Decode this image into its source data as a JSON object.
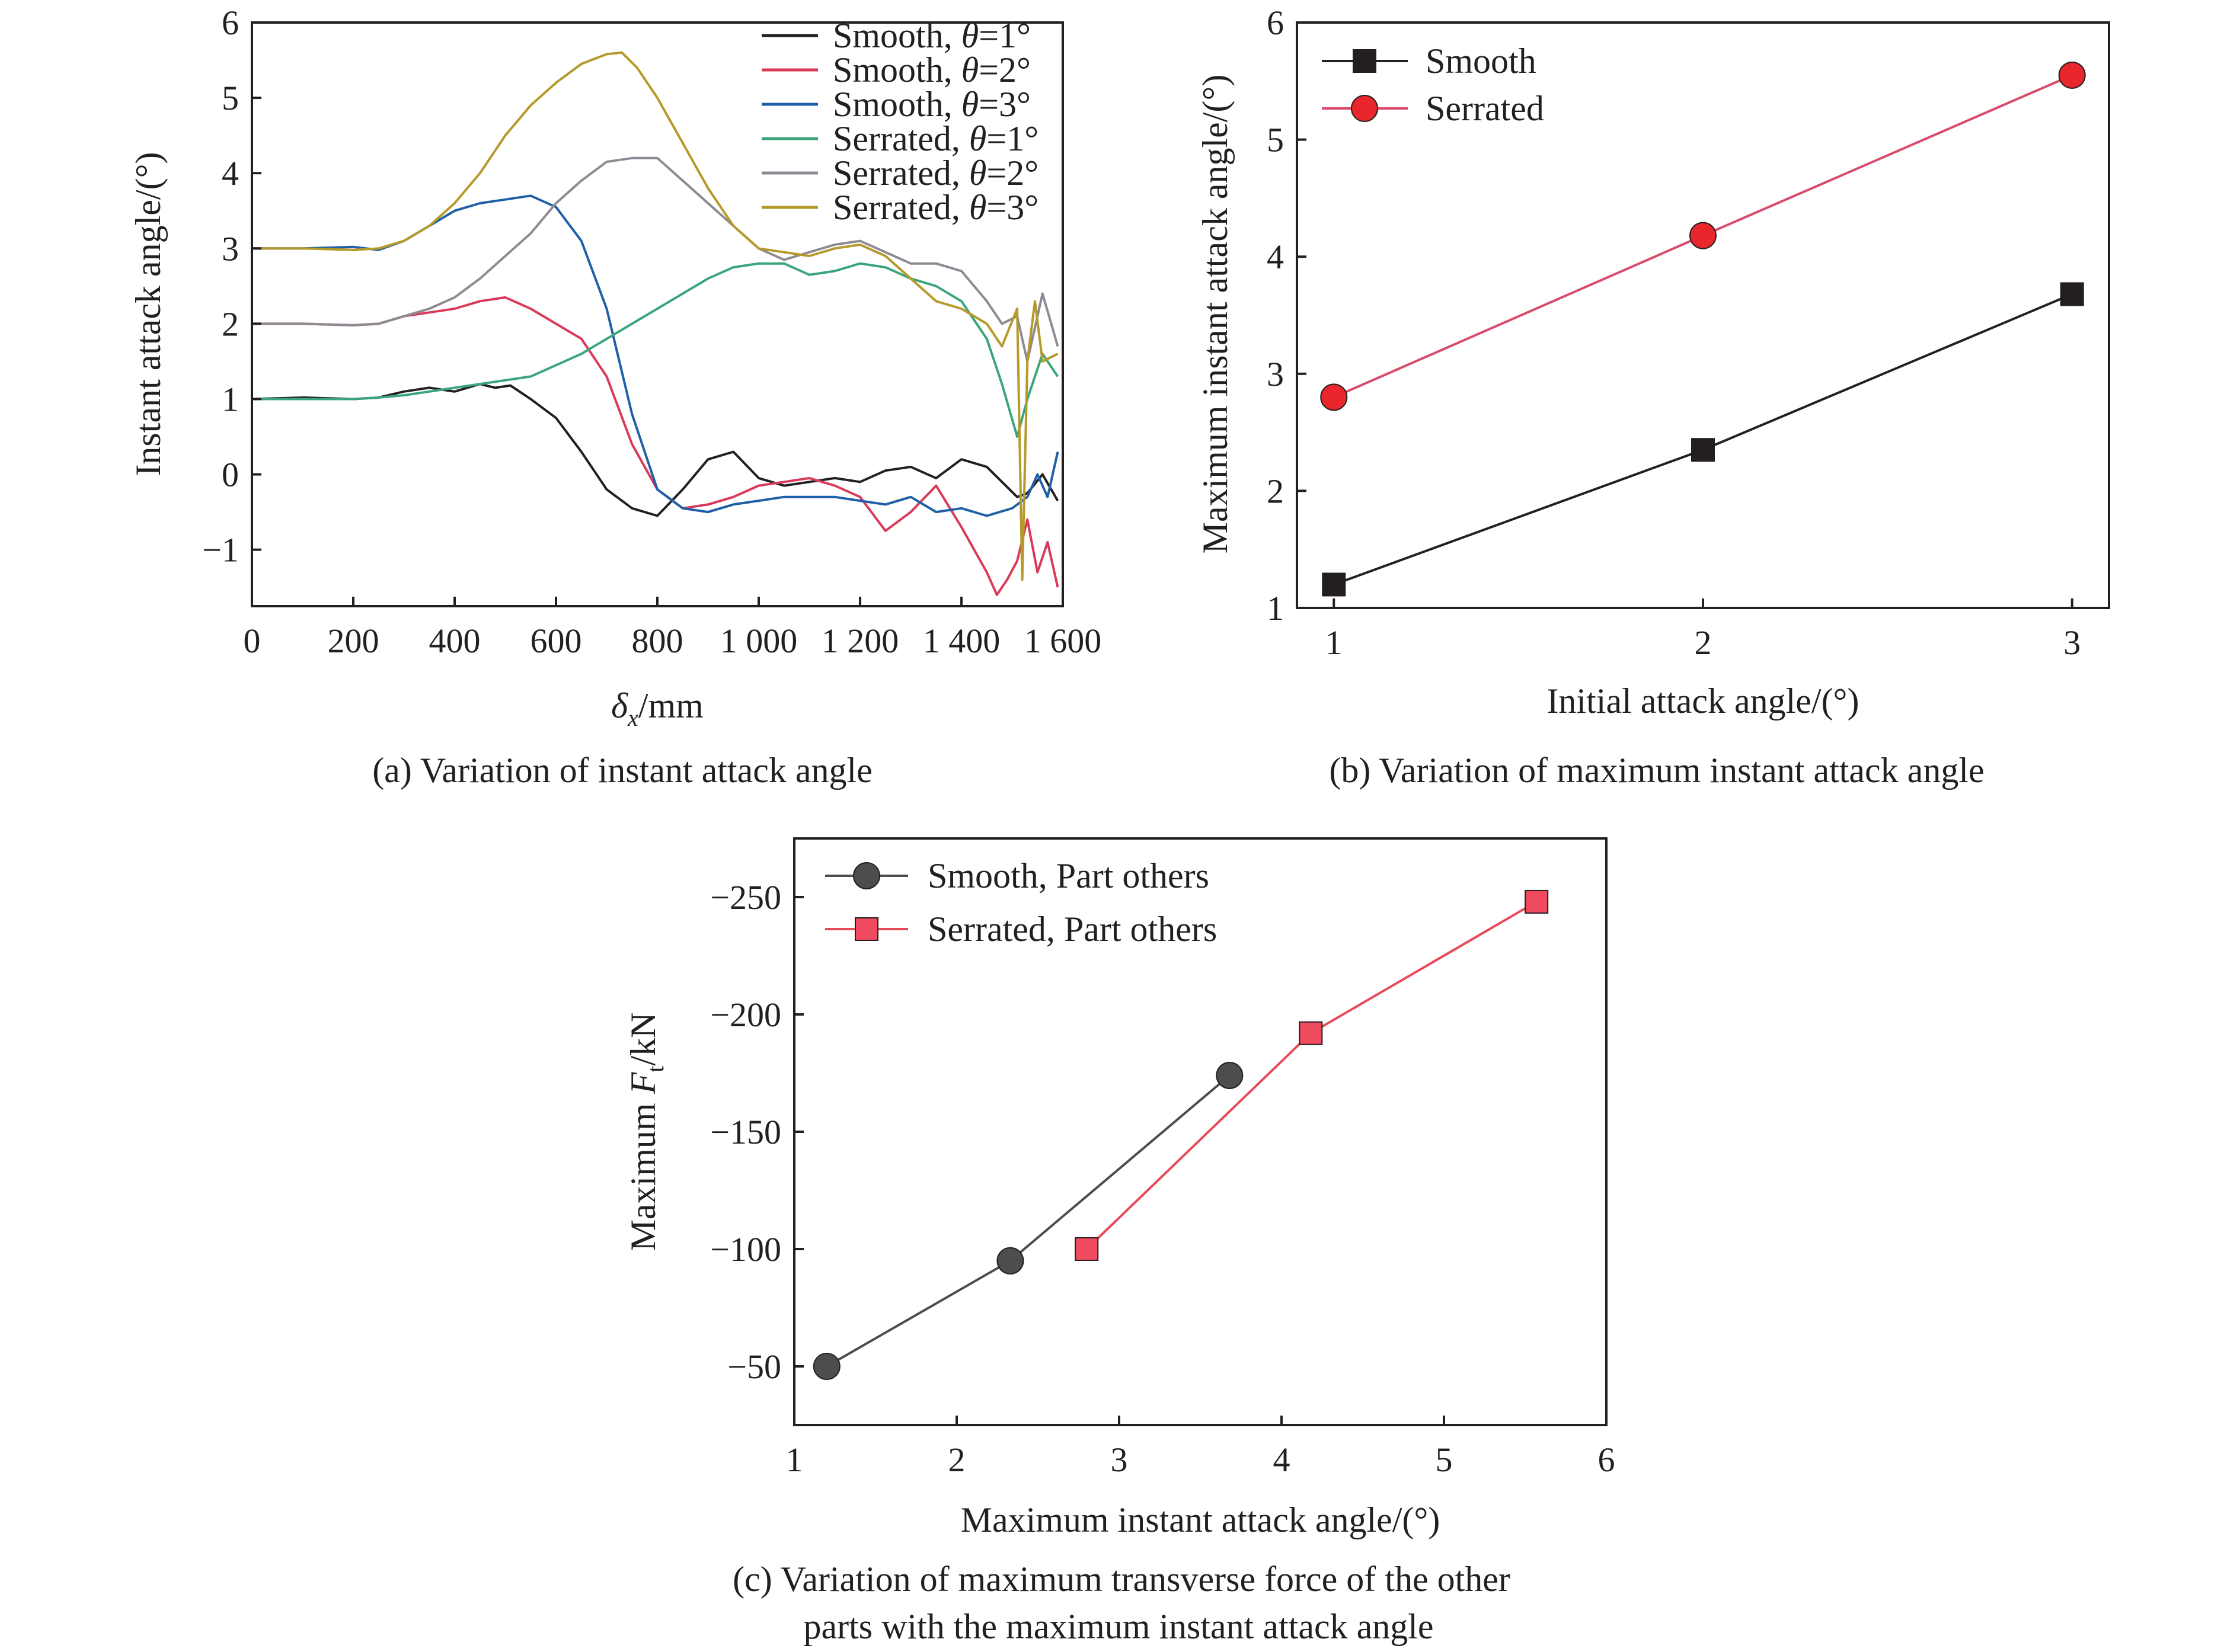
{
  "colors": {
    "smooth1": "#231f20",
    "smooth2": "#d93a5a",
    "smooth3": "#1f5fa8",
    "serrated1": "#3aa57a",
    "serrated2": "#8e8a94",
    "serrated3": "#b59a2a",
    "smooth_marker": "#231f20",
    "serrated_marker": "#e8262b",
    "serrated_line_b": "#d94a6a",
    "c_smooth": "#4d4d4f",
    "c_serrated": "#f04a5e",
    "c_serrated_line": "#e84a5a"
  },
  "chart_data": [
    {
      "type": "line",
      "caption": "(a) Variation of instant attack angle",
      "xlabel_symbol": "δ",
      "xlabel_sub": "x",
      "xlabel_unit": "/mm",
      "ylabel": "Instant attack angle/(°)",
      "xlim": [
        0,
        1600
      ],
      "ylim": [
        -1.75,
        6
      ],
      "xticks": [
        0,
        200,
        400,
        600,
        800,
        1000,
        1200,
        1400,
        1600
      ],
      "xtick_labels": [
        "0",
        "200",
        "400",
        "600",
        "800",
        "1 000",
        "1 200",
        "1 400",
        "1 600"
      ],
      "yticks": [
        -1,
        0,
        1,
        2,
        3,
        4,
        5,
        6
      ],
      "ytick_labels": [
        "−1",
        "0",
        "1",
        "2",
        "3",
        "4",
        "5",
        "6"
      ],
      "legend_position": "top-right",
      "series": [
        {
          "name": "Smooth, θ=1°",
          "name_parts": [
            "Smooth, ",
            "θ",
            "=1°"
          ],
          "color_key": "smooth1",
          "x": [
            0,
            100,
            200,
            250,
            300,
            350,
            400,
            450,
            480,
            510,
            550,
            600,
            650,
            700,
            750,
            800,
            850,
            900,
            950,
            1000,
            1050,
            1100,
            1150,
            1200,
            1250,
            1300,
            1350,
            1400,
            1450,
            1480,
            1510,
            1530,
            1560,
            1590
          ],
          "y": [
            1,
            1.02,
            1.0,
            1.02,
            1.1,
            1.15,
            1.1,
            1.2,
            1.15,
            1.18,
            1.0,
            0.75,
            0.3,
            -0.2,
            -0.45,
            -0.55,
            -0.2,
            0.2,
            0.3,
            -0.05,
            -0.15,
            -0.1,
            -0.05,
            -0.1,
            0.05,
            0.1,
            -0.05,
            0.2,
            0.1,
            -0.1,
            -0.3,
            -0.25,
            0.0,
            -0.35
          ]
        },
        {
          "name": "Smooth, θ=2°",
          "name_parts": [
            "Smooth, ",
            "θ",
            "=2°"
          ],
          "color_key": "smooth2",
          "x": [
            0,
            100,
            200,
            250,
            300,
            350,
            400,
            450,
            500,
            550,
            600,
            650,
            700,
            750,
            800,
            850,
            900,
            950,
            1000,
            1050,
            1100,
            1150,
            1200,
            1250,
            1300,
            1350,
            1400,
            1450,
            1470,
            1490,
            1510,
            1530,
            1550,
            1570,
            1590
          ],
          "y": [
            2,
            2.0,
            1.98,
            2.0,
            2.1,
            2.15,
            2.2,
            2.3,
            2.35,
            2.2,
            2.0,
            1.8,
            1.3,
            0.4,
            -0.2,
            -0.45,
            -0.4,
            -0.3,
            -0.15,
            -0.1,
            -0.05,
            -0.15,
            -0.3,
            -0.75,
            -0.5,
            -0.15,
            -0.7,
            -1.3,
            -1.6,
            -1.4,
            -1.15,
            -0.6,
            -1.3,
            -0.9,
            -1.5
          ]
        },
        {
          "name": "Smooth, θ=3°",
          "name_parts": [
            "Smooth, ",
            "θ",
            "=3°"
          ],
          "color_key": "smooth3",
          "x": [
            0,
            100,
            200,
            250,
            300,
            350,
            400,
            450,
            500,
            550,
            600,
            650,
            700,
            750,
            800,
            850,
            900,
            950,
            1000,
            1050,
            1100,
            1150,
            1200,
            1250,
            1300,
            1350,
            1400,
            1450,
            1500,
            1530,
            1550,
            1570,
            1590
          ],
          "y": [
            3,
            3.0,
            3.02,
            2.98,
            3.1,
            3.3,
            3.5,
            3.6,
            3.65,
            3.7,
            3.55,
            3.1,
            2.2,
            0.8,
            -0.2,
            -0.45,
            -0.5,
            -0.4,
            -0.35,
            -0.3,
            -0.3,
            -0.3,
            -0.35,
            -0.4,
            -0.3,
            -0.5,
            -0.45,
            -0.55,
            -0.45,
            -0.3,
            0.0,
            -0.3,
            0.3
          ]
        },
        {
          "name": "Serrated, θ=1°",
          "name_parts": [
            "Serrated, ",
            "θ",
            "=1°"
          ],
          "color_key": "serrated1",
          "x": [
            0,
            100,
            200,
            250,
            300,
            350,
            400,
            450,
            500,
            550,
            600,
            650,
            700,
            750,
            800,
            850,
            900,
            950,
            1000,
            1050,
            1100,
            1150,
            1200,
            1250,
            1300,
            1350,
            1400,
            1450,
            1480,
            1510,
            1530,
            1560,
            1590
          ],
          "y": [
            1,
            1.0,
            1.0,
            1.02,
            1.05,
            1.1,
            1.15,
            1.2,
            1.25,
            1.3,
            1.45,
            1.6,
            1.8,
            2.0,
            2.2,
            2.4,
            2.6,
            2.75,
            2.8,
            2.8,
            2.65,
            2.7,
            2.8,
            2.75,
            2.6,
            2.5,
            2.3,
            1.8,
            1.2,
            0.5,
            1.0,
            1.6,
            1.3
          ]
        },
        {
          "name": "Serrated, θ=2°",
          "name_parts": [
            "Serrated, ",
            "θ",
            "=2°"
          ],
          "color_key": "serrated2",
          "x": [
            0,
            100,
            200,
            250,
            300,
            350,
            400,
            450,
            500,
            550,
            600,
            650,
            700,
            750,
            800,
            850,
            900,
            950,
            1000,
            1050,
            1100,
            1150,
            1200,
            1250,
            1300,
            1350,
            1400,
            1450,
            1480,
            1510,
            1530,
            1560,
            1590
          ],
          "y": [
            2,
            2.0,
            1.98,
            2.0,
            2.1,
            2.2,
            2.35,
            2.6,
            2.9,
            3.2,
            3.6,
            3.9,
            4.15,
            4.2,
            4.2,
            3.9,
            3.6,
            3.3,
            3.0,
            2.85,
            2.95,
            3.05,
            3.1,
            2.95,
            2.8,
            2.8,
            2.7,
            2.3,
            2.0,
            2.1,
            1.5,
            2.4,
            1.7
          ]
        },
        {
          "name": "Serrated, θ=3°",
          "name_parts": [
            "Serrated, ",
            "θ",
            "=3°"
          ],
          "color_key": "serrated3",
          "x": [
            0,
            100,
            200,
            250,
            300,
            350,
            400,
            450,
            500,
            550,
            600,
            650,
            700,
            730,
            760,
            800,
            850,
            900,
            950,
            1000,
            1050,
            1100,
            1150,
            1200,
            1250,
            1300,
            1350,
            1400,
            1450,
            1480,
            1510,
            1520,
            1530,
            1545,
            1560,
            1590
          ],
          "y": [
            3,
            3.0,
            2.98,
            3.0,
            3.1,
            3.3,
            3.6,
            4.0,
            4.5,
            4.9,
            5.2,
            5.45,
            5.58,
            5.6,
            5.4,
            5.0,
            4.4,
            3.8,
            3.3,
            3.0,
            2.95,
            2.9,
            3.0,
            3.05,
            2.9,
            2.6,
            2.3,
            2.2,
            2.0,
            1.7,
            2.2,
            -1.4,
            1.5,
            2.3,
            1.5,
            1.6
          ]
        }
      ]
    },
    {
      "type": "line",
      "caption": "(b) Variation of maximum instant attack angle",
      "xlabel": "Initial attack angle/(°)",
      "ylabel": "Maximum instant attack angle/(°)",
      "xlim": [
        0.9,
        3.1
      ],
      "ylim": [
        1,
        6
      ],
      "xticks": [
        1,
        2,
        3
      ],
      "xtick_labels": [
        "1",
        "2",
        "3"
      ],
      "yticks": [
        1,
        2,
        3,
        4,
        5,
        6
      ],
      "ytick_labels": [
        "1",
        "2",
        "3",
        "4",
        "5",
        "6"
      ],
      "legend_position": "top-left",
      "series": [
        {
          "name": "Smooth",
          "marker": "square",
          "color_key": "smooth_marker",
          "line_key": "smooth_marker",
          "x": [
            1,
            2,
            3
          ],
          "y": [
            1.2,
            2.35,
            3.68
          ]
        },
        {
          "name": "Serrated",
          "marker": "circle",
          "color_key": "serrated_marker",
          "line_key": "serrated_line_b",
          "x": [
            1,
            2,
            3
          ],
          "y": [
            2.8,
            4.18,
            5.55
          ]
        }
      ]
    },
    {
      "type": "line",
      "caption_line1": "(c) Variation of maximum transverse force of the other",
      "caption_line2": "parts with the maximum instant attack angle",
      "xlabel": "Maximum instant attack angle/(°)",
      "ylabel_prefix": "Maximum ",
      "ylabel_symbol": "F",
      "ylabel_sub": "t",
      "ylabel_unit": "/kN",
      "xlim": [
        1,
        6
      ],
      "ylim": [
        -25,
        -275
      ],
      "xticks": [
        1,
        2,
        3,
        4,
        5,
        6
      ],
      "xtick_labels": [
        "1",
        "2",
        "3",
        "4",
        "5",
        "6"
      ],
      "yticks": [
        -50,
        -100,
        -150,
        -200,
        -250
      ],
      "ytick_labels": [
        "−50",
        "−100",
        "−150",
        "−200",
        "−250"
      ],
      "legend_position": "top-left",
      "series": [
        {
          "name": "Smooth, Part others",
          "marker": "circle",
          "color_key": "c_smooth",
          "line_key": "c_smooth",
          "x": [
            1.2,
            2.33,
            3.68
          ],
          "y": [
            -50,
            -95,
            -174
          ]
        },
        {
          "name": "Serrated, Part others",
          "marker": "square",
          "color_key": "c_serrated",
          "line_key": "c_serrated_line",
          "x": [
            2.8,
            4.18,
            5.57
          ],
          "y": [
            -100,
            -192,
            -248
          ]
        }
      ]
    }
  ]
}
